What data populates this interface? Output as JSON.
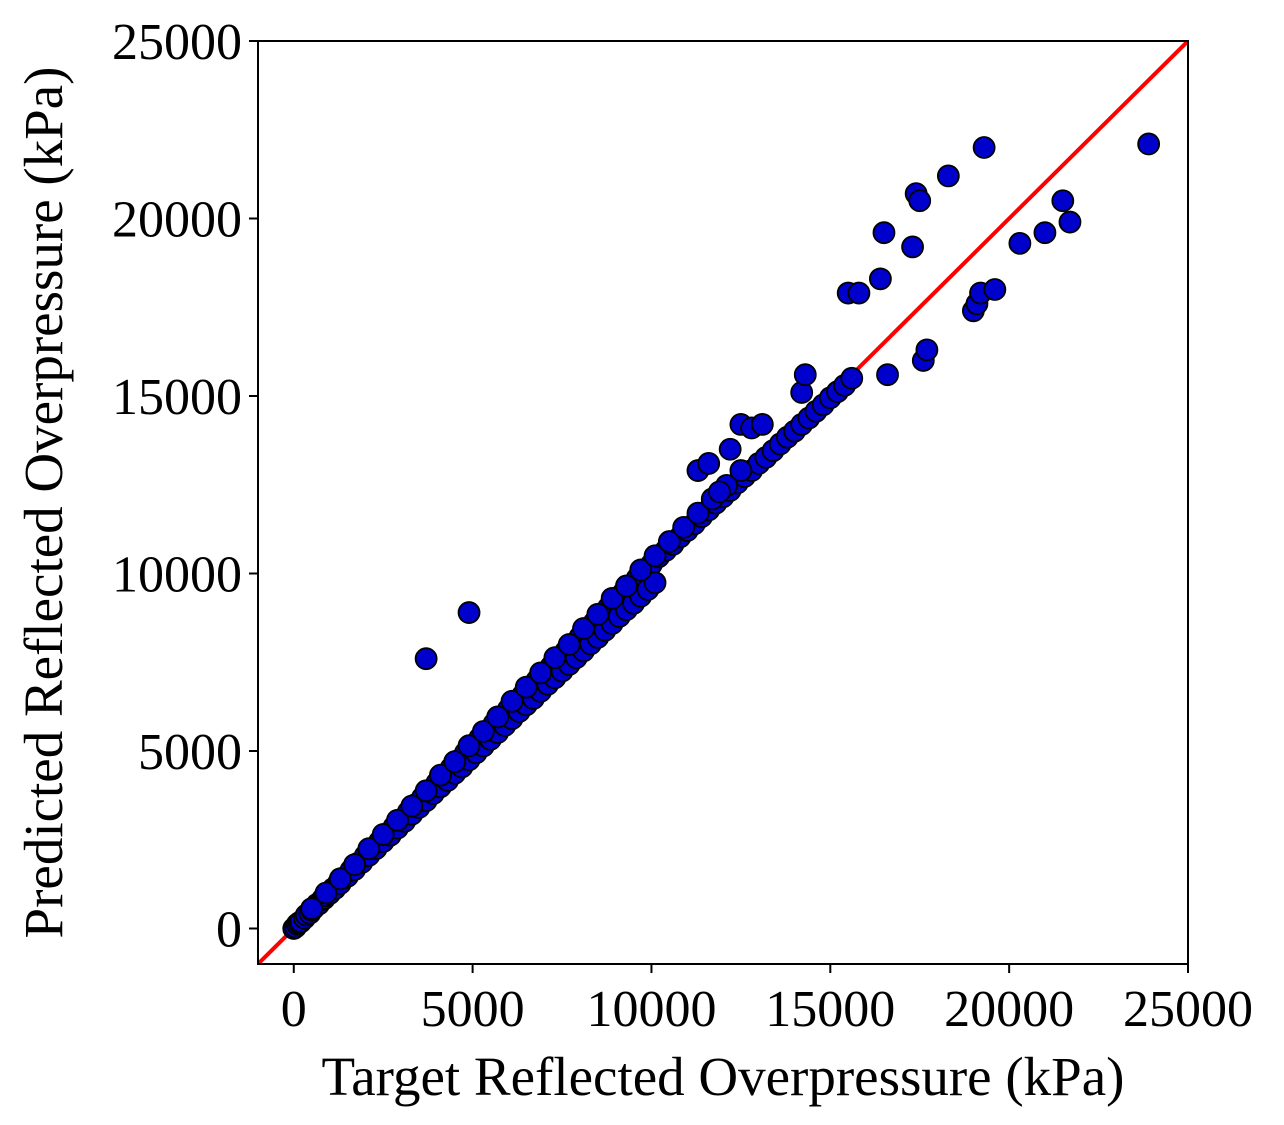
{
  "chart_data": {
    "type": "scatter",
    "xlabel": "Target Reflected Overpressure (kPa)",
    "ylabel": "Predicted Reflected Overpressure (kPa)",
    "xlim": [
      -1000,
      25000
    ],
    "ylim": [
      -1000,
      25000
    ],
    "xticks": [
      0,
      5000,
      10000,
      15000,
      20000,
      25000
    ],
    "yticks": [
      0,
      5000,
      10000,
      15000,
      20000,
      25000
    ],
    "xtick_labels": [
      "0",
      "5000",
      "10000",
      "15000",
      "20000",
      "25000"
    ],
    "ytick_labels": [
      "0",
      "5000",
      "10000",
      "15000",
      "20000",
      "25000"
    ],
    "grid": false,
    "legend": "none",
    "marker_fill": "#0000cc",
    "marker_edge": "#000000",
    "reference_line": {
      "x": [
        -1000,
        25000
      ],
      "y": [
        -1000,
        25000
      ],
      "color": "#ff0000"
    },
    "x": [
      0,
      50,
      100,
      150,
      200,
      300,
      350,
      450,
      500,
      550,
      650,
      700,
      800,
      850,
      900,
      1000,
      1100,
      1150,
      1250,
      1300,
      1400,
      1500,
      1600,
      1700,
      1800,
      1900,
      2000,
      2100,
      2200,
      2300,
      2400,
      2500,
      2600,
      2700,
      2800,
      2900,
      3000,
      3100,
      3200,
      3300,
      3400,
      3500,
      3600,
      3700,
      3800,
      3900,
      4000,
      4100,
      4200,
      4300,
      4400,
      4500,
      4600,
      4700,
      4800,
      4900,
      5000,
      5100,
      5200,
      5300,
      5400,
      5500,
      5600,
      5700,
      5800,
      5900,
      6000,
      6100,
      6200,
      6300,
      6400,
      6500,
      6600,
      6700,
      6800,
      6900,
      7000,
      7100,
      7200,
      7300,
      7400,
      7500,
      7600,
      7700,
      7800,
      7900,
      8000,
      8100,
      8200,
      8300,
      8400,
      8500,
      8600,
      8700,
      8800,
      8900,
      9000,
      9100,
      9200,
      9300,
      9400,
      9500,
      9600,
      9700,
      9800,
      9900,
      10000,
      10100,
      10200,
      10400,
      10600,
      10800,
      11000,
      11200,
      11400,
      11600,
      11800,
      12000,
      12200,
      12400,
      12600,
      12800,
      13000,
      13200,
      13400,
      13600,
      13800,
      14000,
      14200,
      14400,
      14600,
      14800,
      15000,
      15200,
      15400,
      15600,
      500,
      900,
      1300,
      1700,
      2100,
      2500,
      2900,
      3300,
      3700,
      4100,
      4500,
      4900,
      5300,
      5700,
      6100,
      6500,
      6900,
      7300,
      7700,
      8100,
      8500,
      8900,
      9300,
      9700,
      10100,
      10500,
      10900,
      11300,
      11700,
      12100,
      12500,
      3700,
      4900,
      11300,
      11600,
      11900,
      12200,
      12500,
      12800,
      13100,
      14200,
      14300,
      15500,
      15800,
      16400,
      16500,
      16600,
      17300,
      17400,
      17500,
      17600,
      17700,
      18300,
      19000,
      19100,
      19200,
      19300,
      19600,
      20300,
      21000,
      21500,
      21700,
      23900
    ],
    "y": [
      0,
      40,
      120,
      160,
      190,
      290,
      380,
      430,
      520,
      560,
      680,
      690,
      820,
      840,
      920,
      980,
      1120,
      1120,
      1280,
      1270,
      1430,
      1470,
      1640,
      1660,
      1840,
      1860,
      2050,
      2060,
      2250,
      2250,
      2450,
      2450,
      2650,
      2630,
      2860,
      2830,
      3070,
      3020,
      3280,
      3220,
      3490,
      3410,
      3690,
      3600,
      3880,
      3800,
      4100,
      3990,
      4310,
      4170,
      4520,
      4370,
      4730,
      4550,
      4950,
      4750,
      5150,
      4950,
      5360,
      5140,
      5560,
      5330,
      5770,
      5520,
      5960,
      5720,
      6170,
      5910,
      6370,
      6110,
      6570,
      6300,
      6780,
      6480,
      6990,
      6680,
      7180,
      6880,
      7390,
      7060,
      7600,
      7250,
      7800,
      7440,
      8010,
      7630,
      8210,
      7820,
      8410,
      8020,
      8620,
      8200,
      8830,
      8400,
      9040,
      8590,
      9230,
      8790,
      9440,
      8980,
      9650,
      9160,
      9860,
      9360,
      10060,
      9550,
      10260,
      9740,
      10470,
      10650,
      10820,
      11030,
      11210,
      11400,
      11600,
      11790,
      11980,
      12160,
      12340,
      12550,
      12730,
      12900,
      13100,
      13270,
      13460,
      13650,
      13840,
      14010,
      14200,
      14380,
      14570,
      14750,
      14950,
      15120,
      15300,
      15500,
      560,
      1000,
      1400,
      1800,
      2250,
      2650,
      3050,
      3450,
      3880,
      4320,
      4700,
      5150,
      5550,
      5960,
      6400,
      6800,
      7200,
      7630,
      8000,
      8450,
      8850,
      9300,
      9650,
      10100,
      10500,
      10900,
      11300,
      11700,
      12100,
      12480,
      12900,
      7600,
      8900,
      12900,
      13100,
      12300,
      13500,
      14200,
      14100,
      14200,
      15100,
      15600,
      17900,
      17900,
      18300,
      19600,
      15600,
      19200,
      20700,
      20500,
      16000,
      16300,
      21200,
      17400,
      17600,
      17900,
      22000,
      18000,
      19300,
      19600,
      20500,
      19900,
      22100
    ]
  }
}
